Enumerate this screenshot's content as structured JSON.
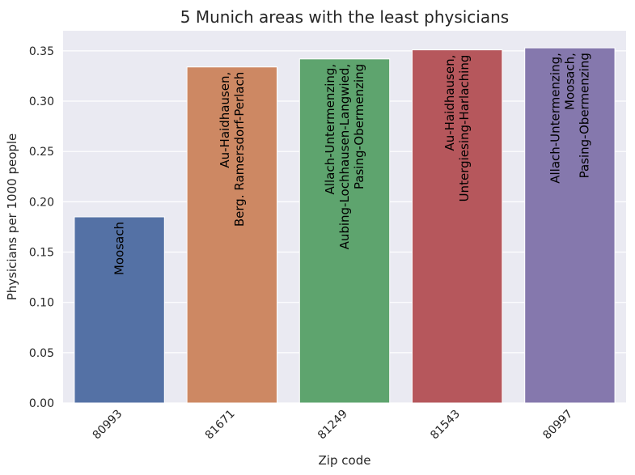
{
  "chart_data": {
    "type": "bar",
    "title": "5 Munich areas with the least physicians",
    "xlabel": "Zip code",
    "ylabel": "Physicians per 1000 people",
    "ylim": [
      0,
      0.37
    ],
    "yticks": [
      "0.00",
      "0.05",
      "0.10",
      "0.15",
      "0.20",
      "0.25",
      "0.30",
      "0.35"
    ],
    "grid": true,
    "categories": [
      "80993",
      "81671",
      "81249",
      "81543",
      "80997"
    ],
    "values": [
      0.185,
      0.334,
      0.342,
      0.351,
      0.353
    ],
    "bar_labels": [
      [
        "Moosach"
      ],
      [
        "Au-Haidhausen,",
        "Berg. Ramersdorf-Perlach"
      ],
      [
        "Allach-Untermenzing,",
        "Aubing-Lochhausen-Langwied,",
        "Pasing-Obermenzing"
      ],
      [
        "Au-Haidhausen,",
        "Untergiesing-Harlaching"
      ],
      [
        "Allach-Untermenzing,",
        "Moosach,",
        "Pasing-Obermenzing"
      ]
    ],
    "colors": [
      "#5471a5",
      "#cd8863",
      "#5ea46e",
      "#b6575c",
      "#8578ad"
    ],
    "background": "#eaeaf2"
  }
}
